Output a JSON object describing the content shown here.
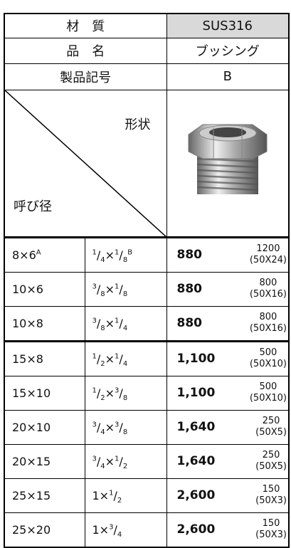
{
  "header": {
    "material_label": "材　質",
    "material": "SUS316",
    "name_label": "品　名",
    "name": "ブッシング",
    "code_label": "製品記号",
    "code": "B",
    "shape_label": "形状",
    "size_label": "呼び径"
  },
  "rows": [
    {
      "mm": "8×6",
      "mm_note": "A",
      "inch": "1/4×1/8",
      "inch_note": "B",
      "price": "880",
      "qty": "1200",
      "pack": "(50X24)"
    },
    {
      "mm": "10×6",
      "inch": "3/8×1/8",
      "price": "880",
      "qty": "800",
      "pack": "(50X16)"
    },
    {
      "mm": "10×8",
      "inch": "3/8×1/4",
      "price": "880",
      "qty": "800",
      "pack": "(50X16)"
    },
    {
      "mm": "15×8",
      "inch": "1/2×1/4",
      "price": "1,100",
      "qty": "500",
      "pack": "(50X10)"
    },
    {
      "mm": "15×10",
      "inch": "1/2×3/8",
      "price": "1,100",
      "qty": "500",
      "pack": "(50X10)"
    },
    {
      "mm": "20×10",
      "inch": "3/4×3/8",
      "price": "1,640",
      "qty": "250",
      "pack": "(50X5)"
    },
    {
      "mm": "20×15",
      "inch": "3/4×1/2",
      "price": "1,640",
      "qty": "250",
      "pack": "(50X5)"
    },
    {
      "mm": "25×15",
      "inch": "1×1/2",
      "price": "2,600",
      "qty": "150",
      "pack": "(50X3)"
    },
    {
      "mm": "25×20",
      "inch": "1×3/4",
      "price": "2,600",
      "qty": "150",
      "pack": "(50X3)"
    }
  ]
}
